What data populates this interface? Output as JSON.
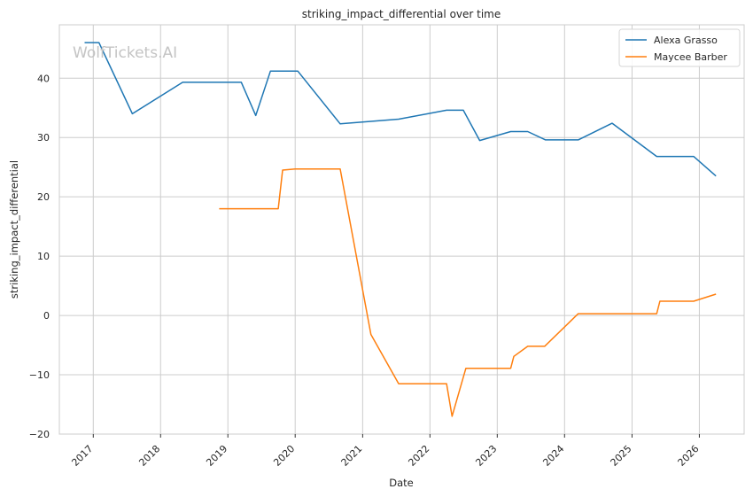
{
  "watermark": "WolfTickets.AI",
  "chart_data": {
    "type": "line",
    "title": "striking_impact_differential over time",
    "xlabel": "Date",
    "ylabel": "striking_impact_differential",
    "xlim": [
      "2016-07-01",
      "2026-09-01"
    ],
    "ylim": [
      -20,
      49
    ],
    "x_ticks": [
      "2017",
      "2018",
      "2019",
      "2020",
      "2021",
      "2022",
      "2023",
      "2024",
      "2025",
      "2026"
    ],
    "y_ticks": [
      -20,
      -10,
      0,
      10,
      20,
      30,
      40
    ],
    "y_tick_labels": [
      "−20",
      "−10",
      "0",
      "10",
      "20",
      "30",
      "40"
    ],
    "grid": true,
    "legend_position": "top-right",
    "series": [
      {
        "name": "Alexa Grasso",
        "color": "#1f77b4",
        "points": [
          [
            "2016-11-15",
            46.0
          ],
          [
            "2017-02-01",
            46.0
          ],
          [
            "2017-08-01",
            34.0
          ],
          [
            "2018-05-01",
            39.3
          ],
          [
            "2019-03-15",
            39.3
          ],
          [
            "2019-06-01",
            33.7
          ],
          [
            "2019-08-20",
            41.2
          ],
          [
            "2020-01-15",
            41.2
          ],
          [
            "2020-09-01",
            32.3
          ],
          [
            "2021-07-15",
            33.1
          ],
          [
            "2022-04-01",
            34.6
          ],
          [
            "2022-07-01",
            34.6
          ],
          [
            "2022-09-28",
            29.5
          ],
          [
            "2023-03-15",
            31.0
          ],
          [
            "2023-06-15",
            31.0
          ],
          [
            "2023-09-20",
            29.6
          ],
          [
            "2024-03-15",
            29.6
          ],
          [
            "2024-09-15",
            32.4
          ],
          [
            "2025-05-15",
            26.8
          ],
          [
            "2025-12-01",
            26.8
          ],
          [
            "2026-04-01",
            23.5
          ]
        ]
      },
      {
        "name": "Maycee Barber",
        "color": "#ff7f0e",
        "points": [
          [
            "2018-11-15",
            18.0
          ],
          [
            "2019-10-01",
            18.0
          ],
          [
            "2019-10-25",
            24.5
          ],
          [
            "2020-01-01",
            24.7
          ],
          [
            "2020-09-01",
            24.7
          ],
          [
            "2021-02-15",
            -3.2
          ],
          [
            "2021-07-15",
            -11.5
          ],
          [
            "2022-04-01",
            -11.5
          ],
          [
            "2022-05-01",
            -17.0
          ],
          [
            "2022-07-15",
            -8.9
          ],
          [
            "2023-03-15",
            -8.9
          ],
          [
            "2023-04-01",
            -6.9
          ],
          [
            "2023-06-15",
            -5.2
          ],
          [
            "2023-09-15",
            -5.2
          ],
          [
            "2024-03-15",
            0.3
          ],
          [
            "2025-05-15",
            0.3
          ],
          [
            "2025-06-01",
            2.4
          ],
          [
            "2025-12-01",
            2.4
          ],
          [
            "2026-04-01",
            3.6
          ]
        ]
      }
    ]
  }
}
